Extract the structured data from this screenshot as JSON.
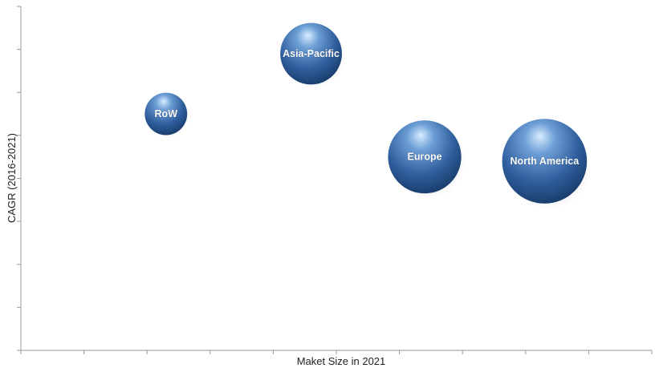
{
  "chart_data": {
    "type": "scatter",
    "title": "",
    "xlabel": "Maket Size in 2021",
    "ylabel": "CAGR (2016-2021)",
    "xlim": [
      0,
      10
    ],
    "ylim": [
      0,
      8
    ],
    "x_ticks": 10,
    "y_ticks": 8,
    "grid": false,
    "legend": "none",
    "bubble_color": "#2f5f9e",
    "series": [
      {
        "points": [
          {
            "label": "RoW",
            "x": 2.3,
            "y": 5.5,
            "size": 0.55
          },
          {
            "label": "Asia-Pacific",
            "x": 4.6,
            "y": 6.9,
            "size": 0.8
          },
          {
            "label": "Europe",
            "x": 6.4,
            "y": 4.5,
            "size": 0.95
          },
          {
            "label": "North America",
            "x": 8.3,
            "y": 4.4,
            "size": 1.1
          }
        ]
      }
    ]
  }
}
